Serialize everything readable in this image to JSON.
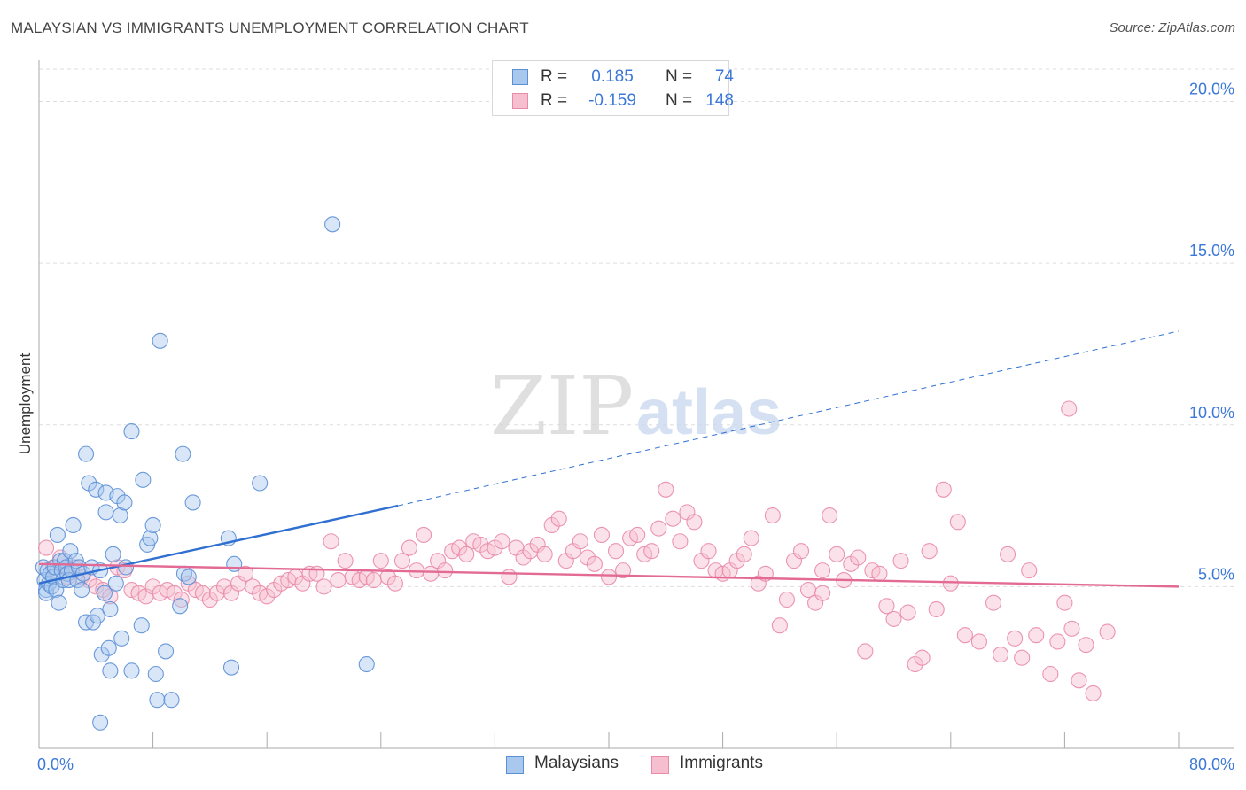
{
  "title": "MALAYSIAN VS IMMIGRANTS UNEMPLOYMENT CORRELATION CHART",
  "source": "Source: ZipAtlas.com",
  "watermark": {
    "zip": "ZIP",
    "atlas": "atlas"
  },
  "colors": {
    "blue_fill": "#a9c8ee",
    "blue_stroke": "#5b8fd6",
    "blue_line": "#2f6fd1",
    "pink_fill": "#f6bfd0",
    "pink_stroke": "#e98aa9",
    "pink_line": "#e26a94",
    "axis_label": "#3c78d8",
    "grid": "#dddddd"
  },
  "legend_top": [
    {
      "series": "blue",
      "r_label": "R =",
      "r_value": "0.185",
      "n_label": "N =",
      "n_value": "74"
    },
    {
      "series": "pink",
      "r_label": "R =",
      "r_value": "-0.159",
      "n_label": "N =",
      "n_value": "148"
    }
  ],
  "legend_bottom": [
    {
      "series": "blue",
      "label": "Malaysians"
    },
    {
      "series": "pink",
      "label": "Immigrants"
    }
  ],
  "chart_data": {
    "type": "scatter",
    "title": "MALAYSIAN VS IMMIGRANTS UNEMPLOYMENT CORRELATION CHART",
    "xlabel": "",
    "ylabel": "Unemployment",
    "xlim": [
      0,
      80
    ],
    "ylim": [
      0,
      21
    ],
    "x_tick_labels": [
      {
        "value": 0,
        "label": "0.0%"
      },
      {
        "value": 80,
        "label": "80.0%"
      }
    ],
    "x_minor_ticks": [
      8,
      16,
      24,
      32,
      40,
      48,
      56,
      64,
      72,
      80
    ],
    "y_ticks": [
      {
        "value": 5,
        "label": "5.0%"
      },
      {
        "value": 10,
        "label": "10.0%"
      },
      {
        "value": 15,
        "label": "15.0%"
      },
      {
        "value": 20,
        "label": "20.0%"
      }
    ],
    "grid": true,
    "series": [
      {
        "name": "Malaysians",
        "color": "blue",
        "r": 0.185,
        "n": 74,
        "trend": {
          "x0": 0,
          "y0": 5.1,
          "x1": 25.2,
          "y1": 7.5,
          "dash_to_x": 80,
          "dash_to_y": 12.9
        },
        "points": [
          [
            0.3,
            5.6
          ],
          [
            0.4,
            5.2
          ],
          [
            0.5,
            4.9
          ],
          [
            0.5,
            4.8
          ],
          [
            0.6,
            5.5
          ],
          [
            0.7,
            5.1
          ],
          [
            0.8,
            5.4
          ],
          [
            0.9,
            5.0
          ],
          [
            1.0,
            5.3
          ],
          [
            1.1,
            5.6
          ],
          [
            1.2,
            4.9
          ],
          [
            1.3,
            6.6
          ],
          [
            1.4,
            4.5
          ],
          [
            1.5,
            5.8
          ],
          [
            1.6,
            5.5
          ],
          [
            1.7,
            5.2
          ],
          [
            1.8,
            5.8
          ],
          [
            1.9,
            5.6
          ],
          [
            2.0,
            5.4
          ],
          [
            2.1,
            5.2
          ],
          [
            2.2,
            6.1
          ],
          [
            2.3,
            5.5
          ],
          [
            2.4,
            6.9
          ],
          [
            2.6,
            5.8
          ],
          [
            2.7,
            5.2
          ],
          [
            2.8,
            5.6
          ],
          [
            3.0,
            4.9
          ],
          [
            3.1,
            5.4
          ],
          [
            3.3,
            9.1
          ],
          [
            3.3,
            3.9
          ],
          [
            3.5,
            8.2
          ],
          [
            3.7,
            5.6
          ],
          [
            3.8,
            3.9
          ],
          [
            4.0,
            8.0
          ],
          [
            4.1,
            4.1
          ],
          [
            4.3,
            5.5
          ],
          [
            4.4,
            2.9
          ],
          [
            4.6,
            4.8
          ],
          [
            4.7,
            7.9
          ],
          [
            4.7,
            7.3
          ],
          [
            4.9,
            3.1
          ],
          [
            5.0,
            4.3
          ],
          [
            5.0,
            2.4
          ],
          [
            5.2,
            6.0
          ],
          [
            5.4,
            5.1
          ],
          [
            5.5,
            7.8
          ],
          [
            5.7,
            7.2
          ],
          [
            5.8,
            3.4
          ],
          [
            6.0,
            7.6
          ],
          [
            6.1,
            5.6
          ],
          [
            6.5,
            9.8
          ],
          [
            6.5,
            2.4
          ],
          [
            7.2,
            3.8
          ],
          [
            7.3,
            8.3
          ],
          [
            7.6,
            6.3
          ],
          [
            7.8,
            6.5
          ],
          [
            8.0,
            6.9
          ],
          [
            8.2,
            2.3
          ],
          [
            8.3,
            1.5
          ],
          [
            8.5,
            12.6
          ],
          [
            8.9,
            3.0
          ],
          [
            9.3,
            1.5
          ],
          [
            9.9,
            4.4
          ],
          [
            10.1,
            9.1
          ],
          [
            10.2,
            5.4
          ],
          [
            10.5,
            5.3
          ],
          [
            10.8,
            7.6
          ],
          [
            13.3,
            6.5
          ],
          [
            13.5,
            2.5
          ],
          [
            13.7,
            5.7
          ],
          [
            15.5,
            8.2
          ],
          [
            20.6,
            16.2
          ],
          [
            23.0,
            2.6
          ],
          [
            4.3,
            0.8
          ]
        ]
      },
      {
        "name": "Immigrants",
        "color": "pink",
        "r": -0.159,
        "n": 148,
        "trend": {
          "x0": 0,
          "y0": 5.7,
          "x1": 80,
          "y1": 5.0
        },
        "points": [
          [
            0.5,
            6.2
          ],
          [
            1.0,
            5.6
          ],
          [
            1.5,
            5.9
          ],
          [
            2.0,
            5.3
          ],
          [
            2.5,
            5.6
          ],
          [
            3.0,
            5.3
          ],
          [
            3.5,
            5.2
          ],
          [
            4.0,
            5.0
          ],
          [
            4.5,
            4.9
          ],
          [
            5.0,
            4.7
          ],
          [
            5.5,
            5.6
          ],
          [
            6.0,
            5.5
          ],
          [
            6.5,
            4.9
          ],
          [
            7.0,
            4.8
          ],
          [
            7.5,
            4.7
          ],
          [
            8.0,
            5.0
          ],
          [
            8.5,
            4.8
          ],
          [
            9.0,
            4.9
          ],
          [
            9.5,
            4.8
          ],
          [
            10.0,
            4.6
          ],
          [
            10.5,
            5.1
          ],
          [
            11.0,
            4.9
          ],
          [
            11.5,
            4.8
          ],
          [
            12.0,
            4.6
          ],
          [
            12.5,
            4.8
          ],
          [
            13.0,
            5.0
          ],
          [
            13.5,
            4.8
          ],
          [
            14.0,
            5.1
          ],
          [
            14.5,
            5.4
          ],
          [
            15.0,
            5.0
          ],
          [
            15.5,
            4.8
          ],
          [
            16.0,
            4.7
          ],
          [
            16.5,
            4.9
          ],
          [
            17.0,
            5.1
          ],
          [
            17.5,
            5.2
          ],
          [
            18.0,
            5.3
          ],
          [
            18.5,
            5.1
          ],
          [
            19.0,
            5.4
          ],
          [
            19.5,
            5.4
          ],
          [
            20.0,
            5.0
          ],
          [
            20.5,
            6.4
          ],
          [
            21.0,
            5.2
          ],
          [
            21.5,
            5.8
          ],
          [
            22.0,
            5.3
          ],
          [
            22.5,
            5.2
          ],
          [
            23.0,
            5.3
          ],
          [
            23.5,
            5.2
          ],
          [
            24.0,
            5.8
          ],
          [
            24.5,
            5.3
          ],
          [
            25.0,
            5.1
          ],
          [
            25.5,
            5.8
          ],
          [
            26.0,
            6.2
          ],
          [
            26.5,
            5.5
          ],
          [
            27.0,
            6.6
          ],
          [
            27.5,
            5.4
          ],
          [
            28.0,
            5.8
          ],
          [
            28.5,
            5.5
          ],
          [
            29.0,
            6.1
          ],
          [
            29.5,
            6.2
          ],
          [
            30.0,
            6.0
          ],
          [
            30.5,
            6.4
          ],
          [
            31.0,
            6.3
          ],
          [
            31.5,
            6.1
          ],
          [
            32.0,
            6.2
          ],
          [
            32.5,
            6.4
          ],
          [
            33.0,
            5.3
          ],
          [
            33.5,
            6.2
          ],
          [
            34.0,
            5.9
          ],
          [
            34.5,
            6.1
          ],
          [
            35.0,
            6.3
          ],
          [
            35.5,
            6.0
          ],
          [
            36.0,
            6.9
          ],
          [
            36.5,
            7.1
          ],
          [
            37.0,
            5.8
          ],
          [
            37.5,
            6.1
          ],
          [
            38.0,
            6.4
          ],
          [
            38.5,
            5.9
          ],
          [
            39.0,
            5.7
          ],
          [
            39.5,
            6.6
          ],
          [
            40.0,
            5.3
          ],
          [
            40.5,
            6.1
          ],
          [
            41.0,
            5.5
          ],
          [
            41.5,
            6.5
          ],
          [
            42.0,
            6.6
          ],
          [
            42.5,
            6.0
          ],
          [
            43.0,
            6.1
          ],
          [
            43.5,
            6.8
          ],
          [
            44.0,
            8.0
          ],
          [
            44.5,
            7.1
          ],
          [
            45.0,
            6.4
          ],
          [
            45.5,
            7.3
          ],
          [
            46.0,
            7.0
          ],
          [
            46.5,
            5.8
          ],
          [
            47.0,
            6.1
          ],
          [
            47.5,
            5.5
          ],
          [
            48.0,
            5.4
          ],
          [
            48.5,
            5.5
          ],
          [
            49.0,
            5.8
          ],
          [
            49.5,
            6.0
          ],
          [
            50.0,
            6.5
          ],
          [
            50.5,
            5.1
          ],
          [
            51.0,
            5.4
          ],
          [
            51.5,
            7.2
          ],
          [
            52.0,
            3.8
          ],
          [
            52.5,
            4.6
          ],
          [
            53.0,
            5.8
          ],
          [
            53.5,
            6.1
          ],
          [
            54.0,
            4.9
          ],
          [
            54.5,
            4.5
          ],
          [
            55.0,
            5.5
          ],
          [
            55.5,
            7.2
          ],
          [
            56.0,
            6.0
          ],
          [
            56.5,
            5.2
          ],
          [
            57.0,
            5.7
          ],
          [
            57.5,
            5.9
          ],
          [
            58.0,
            3.0
          ],
          [
            58.5,
            5.5
          ],
          [
            59.0,
            5.4
          ],
          [
            59.5,
            4.4
          ],
          [
            60.0,
            4.0
          ],
          [
            60.5,
            5.8
          ],
          [
            61.0,
            4.2
          ],
          [
            61.5,
            2.6
          ],
          [
            62.0,
            2.8
          ],
          [
            62.5,
            6.1
          ],
          [
            63.0,
            4.3
          ],
          [
            63.5,
            8.0
          ],
          [
            64.0,
            5.1
          ],
          [
            65.0,
            3.5
          ],
          [
            66.0,
            3.3
          ],
          [
            67.0,
            4.5
          ],
          [
            67.5,
            2.9
          ],
          [
            68.0,
            6.0
          ],
          [
            68.5,
            3.4
          ],
          [
            69.0,
            2.8
          ],
          [
            69.5,
            5.5
          ],
          [
            70.0,
            3.5
          ],
          [
            71.0,
            2.3
          ],
          [
            71.5,
            3.3
          ],
          [
            72.0,
            4.5
          ],
          [
            72.5,
            3.7
          ],
          [
            73.0,
            2.1
          ],
          [
            73.5,
            3.2
          ],
          [
            74.0,
            1.7
          ],
          [
            75.0,
            3.6
          ],
          [
            72.3,
            10.5
          ],
          [
            55.0,
            4.8
          ],
          [
            64.5,
            7.0
          ]
        ]
      }
    ]
  },
  "y_axis_title": "Unemployment"
}
